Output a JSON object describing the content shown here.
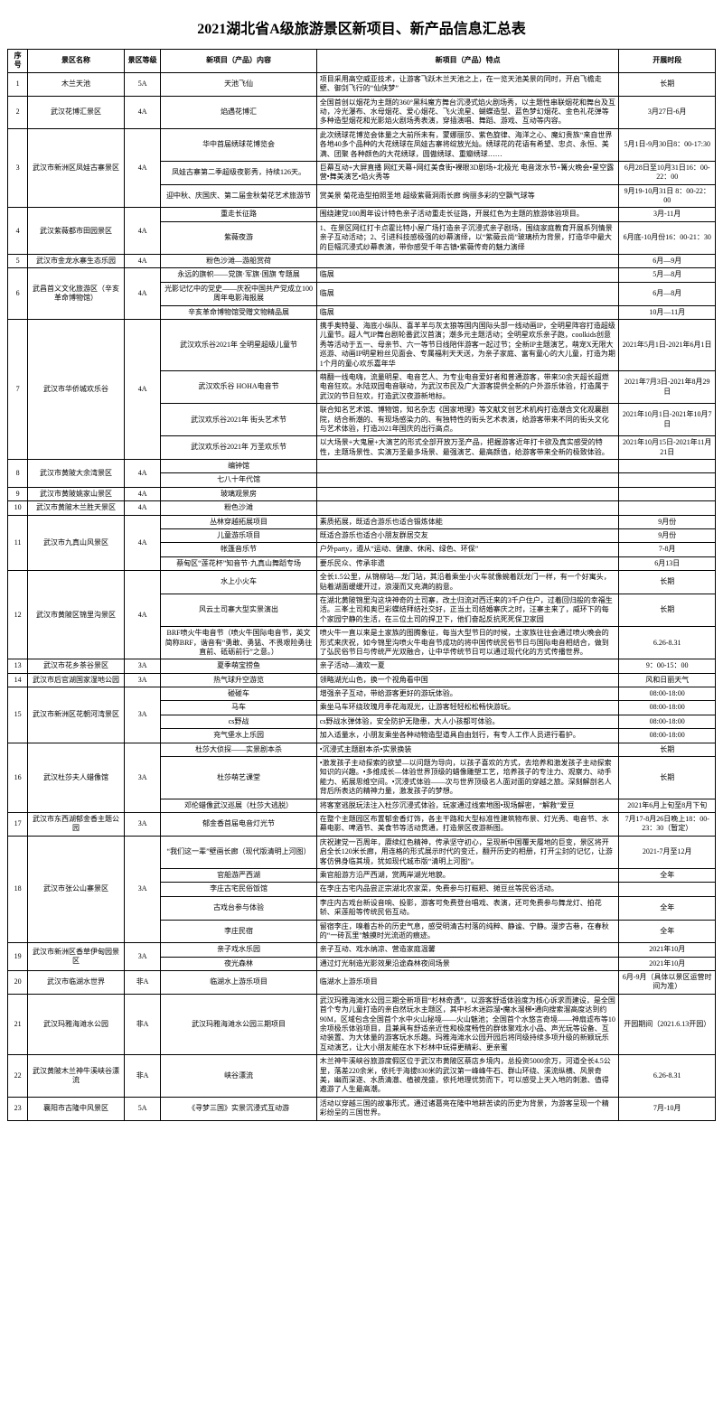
{
  "title": "2021湖北省A级旅游景区新项目、新产品信息汇总表",
  "headers": {
    "seq": "序号",
    "name": "景区名称",
    "grade": "景区等级",
    "content": "新项目（产品）内容",
    "feature": "新项目（产品）特点",
    "time": "开展时段"
  },
  "rows": [
    {
      "seq": "1",
      "name": "木兰天池",
      "grade": "5A",
      "content": "天池飞仙",
      "feature": "项目采用高空威亚技术，让游客飞跃木兰天池之上，在一览天池美景的同时，开启飞檐走壁、御剑飞行的“仙侠梦”",
      "time": "长期"
    },
    {
      "seq": "2",
      "name": "武汉花博汇景区",
      "grade": "4A",
      "content": "焰遇花博汇",
      "feature": "全国首创以烟花为主题的360°黑科魔方舞台沉浸式焰火剧场秀，以主题性串联烟花和舞台及互动，冷光瀑布、水母烟花、爱心烟花、飞火流星、蝴蝶造型、蓝色梦幻烟花、金色礼花弹等多种造型烟花和光影焰火剧场秀表演，穿插演唱、舞蹈、游戏、互动等内容。",
      "time": "3月27日-6月"
    },
    {
      "seq": "3",
      "name": "武汉市新洲区凤娃古寨景区",
      "grade": "4A",
      "items": [
        {
          "content": "华中首届绣球花博览会",
          "feature": "此次绣球花博览会体量之大前所未有，蒙娜丽莎、紫色旋律、海洋之心、魔幻贵族“来自世界各地40多个品种的大花绣球在凤娃古寨将绽放光灿。绣球花的花语有希望、忠贞、永恒、美满、团聚 各种颜色的大花绣球，圆傲绣球、重瓣绣球……",
          "time": "5月1日-9月30日8：00-17:30"
        },
        {
          "content": "凤娃古寨第二季超级夜影秀，持续126天。",
          "feature": "巨幕互动+大屏直播 网红天幕+网红美食街•裸眼3D剧场+北极光   电音泼水节+篝火晚会•星空露营•舞美演艺•焰火秀等",
          "time": "6月28日至10月31日16：00-22：00"
        },
        {
          "content": "迎中秋、庆国庆、第二届金秋菊花艺术旅游节",
          "feature": "赏美景  菊花造型拍照圣地  超级紫薇洞雨长廊   绚丽多彩的空飘气球等",
          "time": "9月19-10月31日 8：00-22：00"
        }
      ]
    },
    {
      "seq": "4",
      "name": "武汉紫薇都市田园景区",
      "grade": "4A",
      "items": [
        {
          "content": "重走长征路",
          "feature": "围绕建党100周年设计特色亲子活动重走长征路，开展红色为主题的旅游体验项目。",
          "time": "3月-11月"
        },
        {
          "content": "紫薇夜游",
          "feature": "1、在景区网红打卡点霍比特小屋广场打造亲子沉浸式亲子剧场，围绕家庭教育开展系列情景亲子互动活动；2、引进科技感极强的纱幕演绎，以“紫薇云尚”玻璃桥为背景，打造华中最大的巨幅沉浸式纱幕表演，带你感受千年古镇•紫薇传奇的魅力演绎",
          "time": "6月底-10月份16：00-21：30"
        }
      ]
    },
    {
      "seq": "5",
      "name": "武汉市金龙水寨生态乐园",
      "grade": "4A",
      "content": "粉色沙滩—游船赏荷",
      "feature": "",
      "time": "6月—9月"
    },
    {
      "seq": "6",
      "name": "武昌首义文化旅游区（辛亥革命博物馆）",
      "grade": "4A",
      "items": [
        {
          "content": "永远的旗帜——党旗·军旗·国旗  专题展",
          "feature": "临展",
          "time": "5月—8月"
        },
        {
          "content": "光影记忆中的党史——庆祝中国共产党成立100周年电影海报展",
          "feature": "临展",
          "time": "6月—8月"
        },
        {
          "content": "辛亥革命博物馆受赠文物精品展",
          "feature": "临展",
          "time": "10月—11月"
        }
      ]
    },
    {
      "seq": "7",
      "name": "武汉市华侨城欢乐谷",
      "grade": "4A",
      "items": [
        {
          "content": "武汉欢乐谷2021年 全明星超级儿童节",
          "feature": "携手奥特曼、海底小纵队、喜羊羊与灰太狼等国内国际头部一线动画IP，全明星阵容打造超级儿童节。超人气IP舞台剧轮番武汉首演；潮多元主题活动；全明星欢乐亲子跑，coolkids创意秀等活动于五一、母亲节、六一等节日线陪伴游客一起过节；全新IP主题演艺，萌宠X无限大巡游、动画IP明星粉丝见面会、专属福利天天送，为亲子家庭、富有童心的大儿童，打造为期1个月的童心欢乐嘉年华",
          "time": "2021年5月1日-2021年6月1日"
        },
        {
          "content": "武汉欢乐谷 HOHA电音节",
          "feature": "萌翻一线电嗨，流量明星、电音艺人、为专业电音爱好者和普通游客，带来50余天超长超燃电音狂欢。水陆双园电音联动，为武汉市民及广大游客提供全新的户外游乐体验，打造属于武汉的节日狂欢，打造武汉夜游新地标。",
          "time": "2021年7月3日-2021年8月29日"
        },
        {
          "content": "武汉欢乐谷2021年 街头艺术节",
          "feature": "联合知名艺术馆、博物馆，知名杂志《国家地理》等文献文创艺术机构打造潮含文化观襄剧院，结合新潮的、有现场感染力的、有独特性的街头艺术表演，给游客带来不同的街头文化与艺术体验，打造2021年国庆的出行高点。",
          "time": "2021年10月1日-2021年10月7日"
        },
        {
          "content": "武汉欢乐谷2021年 万圣欢乐节",
          "feature": "以大场景+大鬼屋+大演艺的形式全部开放万圣产品，把握游客近年打卡欲及真实感受的特性，主题场景性、实演万圣最多场景、最强演艺、最高颜值，给游客带来全新的极致体验。",
          "time": "2021年10月15日-2021年11月21日"
        }
      ]
    },
    {
      "seq": "8",
      "name": "武汉市黄陂大余湾景区",
      "grade": "4A",
      "items": [
        {
          "content": "编钟馆",
          "feature": "",
          "time": ""
        },
        {
          "content": "七八十年代馆",
          "feature": "",
          "time": ""
        }
      ]
    },
    {
      "seq": "9",
      "name": "武汉市黄陂姚家山景区",
      "grade": "4A",
      "content": "玻璃观景房",
      "feature": "",
      "time": ""
    },
    {
      "seq": "10",
      "name": "武汉市黄陂木兰胜天景区",
      "grade": "4A",
      "content": "粉色沙滩",
      "feature": "",
      "time": ""
    },
    {
      "seq": "11",
      "name": "武汉市九真山风景区",
      "grade": "4A",
      "items": [
        {
          "content": "丛林穿越拓展项目",
          "feature": "素质拓展，既适合游乐也适合锻炼体能",
          "time": "9月份"
        },
        {
          "content": "儿童游乐项目",
          "feature": "既适合游乐也适合小朋友群居交友",
          "time": "9月份"
        },
        {
          "content": "帐篷音乐节",
          "feature": "户外party，遵从“运动、健康、休闲、绿色、环保”",
          "time": "7-8月"
        },
        {
          "content": "蔡甸区“莲花杯”知音节·九真山舞蹈专场",
          "feature": "要乐民众、传承非遗",
          "time": "6月13日"
        }
      ]
    },
    {
      "seq": "12",
      "name": "武汉市黄陂区锦里沟景区",
      "grade": "4A",
      "items": [
        {
          "content": "水上小火车",
          "feature": "全长1.5公里，从锦柳站—龙门站，其沿着乘坐小火车就像蜿着跃龙门一样，有一个好寓头，贴着湖面缓缓开过，浪漫而又充满的韵意。",
          "time": "长期"
        },
        {
          "content": "风云土司寨大型实景演出",
          "feature": "在湖北黄陂锦里沟这块神奇的土司寨，改土归流对西迁来的3千户住户，过着回归般的幸福生活。三峯土司和奥巴彩蝶结拜结社交好，正当土司结婚寨庆之时，汪寨主来了，威环下的每个家园宁静的生活，在三位土司的捍卫下，他们奋起反抗死死保卫家园",
          "time": "长期"
        },
        {
          "content": "BRF喷火牛电音节（喷火牛国际电音节，英文简称BRF，谐音有“勇敢、勇猛、不畏艰险勇往直前、砥砺前行”之意。）",
          "feature": "喷火牛一直以来是土家族的图腾象征，每当大型节日的时候，土家族往往会通过喷火晚会的形式来庆祝，如今锦里沟喷火牛电音节成功的将中国传统民俗节日与国际电音相结合，做到了弘民俗节日与传统严光双融合，让中华传统节日可以通过现代化的方式传播世界。",
          "time": "6.26-8.31"
        }
      ]
    },
    {
      "seq": "13",
      "name": "武汉市花乡茶谷景区",
      "grade": "3A",
      "content": "夏季萌宝捞鱼",
      "feature": "亲子活动—清欢一夏",
      "time": "9：00-15：00"
    },
    {
      "seq": "14",
      "name": "武汉市后官湖国家湿地公园",
      "grade": "3A",
      "content": "热气球升空游览",
      "feature": "领略湖光山色，换一个视角看中国",
      "time": "风和日丽天气"
    },
    {
      "seq": "15",
      "name": "武汉市新洲区花朝河湾景区",
      "grade": "3A",
      "items": [
        {
          "content": "碰碰车",
          "feature": "增强亲子互动，带给游客更好的游玩体验。",
          "time": "08:00-18:00"
        },
        {
          "content": "马车",
          "feature": "乘坐马车环绕玫瑰月季花海观光，让游客轻轻松松畅快游玩。",
          "time": "08:00-18:00"
        },
        {
          "content": "cs野战",
          "feature": "cs野战水弹体验，安全防护无隐患，大人小孩都可体验。",
          "time": "08:00-18:00"
        },
        {
          "content": "充气堡水上乐园",
          "feature": "加入适量水，小朋友乘坐各种动物造型道具自由划行，有专人工作人员进行看护。",
          "time": "08:00-18:00"
        }
      ]
    },
    {
      "seq": "16",
      "name": "武汉杜莎夫人蜡像馆",
      "grade": "3A",
      "items": [
        {
          "content": "杜莎大侦探——实景剧本杀",
          "feature": "•沉浸式主题剧本杀•实景换装",
          "time": "长期"
        },
        {
          "content": "杜莎萌艺课堂",
          "feature": "•激发孩子主动探索的欲望—以问题为导向，以孩子喜欢的方式，去培养和激发孩子主动探索 知识的兴趣。•多维成长—体验世界顶级的蜡像雕塑工艺，培养孩子的专注力、观察力、动手能力、拓展思维空间。•沉浸式体验——次与世界顶级名人面对面的穿越之旅。深刻解剖名人背后所表达的精神力量，激发孩子的梦想。",
          "time": "长期"
        },
        {
          "content": "邓伦蜡像武汉巡展（杜莎大逃脱）",
          "feature": "将客室逃脱玩法注入杜莎沉浸式体验，玩家通过线索地图•现场解密，“解救”爱豆",
          "time": "2021年6月上旬至8月下旬"
        }
      ]
    },
    {
      "seq": "17",
      "name": "武汉市东西湖郁金香主题公园",
      "grade": "3A",
      "content": "郁金香首届电音灯光节",
      "feature": "在整个主题园区布置郁金香灯饰，各主干路和大型标准性建筑物布景、灯光秀、电音节、水幕电影、啤酒节、美食节等活动贯通，打造景区夜游新图。",
      "time": "7月17-8月26日晚上18：00-23：30（暂定）"
    },
    {
      "seq": "18",
      "name": "武汉市张公山寨景区",
      "grade": "3A",
      "items": [
        {
          "content": "“我们这一辈”壁画长廊（现代版清明上河图）",
          "feature": "庆祝建党一百周年，赓续红色精神，传承坚守初心，呈现新中国覆天履地的巨变，景区将开启全长120米长廊，用连格的形式展示时代的变迁，翻开历史的相册，打开尘封的记忆，让游客仿佛身临其境，犹如现代城市版“清明上河图”。",
          "time": "2021-7月至12月"
        },
        {
          "content": "官船游严西湖",
          "feature": "乘官船游方沿严西湖，赏两岸湖光地貌。",
          "time": "全年"
        },
        {
          "content": "李庄古宅民俗饭馆",
          "feature": "在李庄古宅内品尝正宗湖北农家菜，免费参与打糍粑、摊豆丝等民俗活动。",
          "time": ""
        },
        {
          "content": "古戏台参与体验",
          "feature": "李庄内古戏台新设音响、投影，游客可免费登台唱戏、表演，还可免费参与舞龙灯、拍花轿、采莲船等传统民俗互动。",
          "time": "全年"
        },
        {
          "content": "李庄民宿",
          "feature": "留宿李庄，嗅着古朴的历史气息，感受明清古村落的纯粹、静谧、宁静。漫步古巷，在春秋的“一砖瓦里”触摸时光流逝的痕迹。",
          "time": "全年"
        }
      ]
    },
    {
      "seq": "19",
      "name": "武汉市新洲区香草伊甸园景区",
      "grade": "3A",
      "items": [
        {
          "content": "亲子戏水乐园",
          "feature": "亲子互动、戏水纳凉、营造家庭温馨",
          "time": "2021年10月"
        },
        {
          "content": "夜光森林",
          "feature": "通过灯光制造光影效果沿途森林夜间场景",
          "time": "2021年10月"
        }
      ]
    },
    {
      "seq": "20",
      "name": "武汉市临湖水世界",
      "grade": "非A",
      "content": "临湖水上游乐项目",
      "feature": "临湖水上游乐项目",
      "time": "6月-9月（具体以景区运营时间为准）"
    },
    {
      "seq": "21",
      "name": "武汉玛雅海滩水公园",
      "grade": "非A",
      "content": "武汉玛雅海滩水公园三期项目",
      "feature": "武汉玛雅海滩水公园三期全新项目“杉林奇遇”，以游客舒适体验度为核心诉求而建设，是全国首个专为儿童打造的亲自然玩水主题区，其中杉木迷踪溜•魔水溜梯•通向搜索溜高度达到约90M，区域包含全国首个水中火山秘境——火山魅池；全国首个水悠言奇境——神扇滤布等10余项极乐体验项目，且兼具有舒适亲近性和极度畅性的群体聚戏水小品、声光玩等设备、互动装置、为大体量的游客玩水乐趣。玛雅海滩水公园开园后将同级持续多项升级的新颖玩乐互动演艺，让大小朋友能在水下杉林中玩得更精彩、更亲蜜",
      "time": "开园期间（2021.6.13开园）"
    },
    {
      "seq": "22",
      "name": "武汉黄陂木兰神牛溪峡谷漂流",
      "grade": "非A",
      "content": "峡谷漂流",
      "feature": "木兰神牛溪峡谷旅游度假区位于武汉市黄陂区蔡店乡境内，总投资5000余万，河道全长4.5公里，落差220余米，依托于海拔830米的武汉第一峰峰牛石、群山环绕、溪流纵横、风景奇美，幽而深遂、水质清澈、植被茂盛，依托地理优势而下，可以感受上天入地的刺激、值得遨游了人生最高潮。",
      "time": "6.26-8.31"
    },
    {
      "seq": "23",
      "name": "襄阳市古隆中风景区",
      "grade": "5A",
      "content": "《寻梦三国》实景沉浸式互动游",
      "feature": "活动以穿越三国的故事形式，通过诸葛亮在隆中地耕苦读的历史为背景，为游客呈现一个精彩纷呈的三国世界。",
      "time": "7月-10月"
    }
  ]
}
